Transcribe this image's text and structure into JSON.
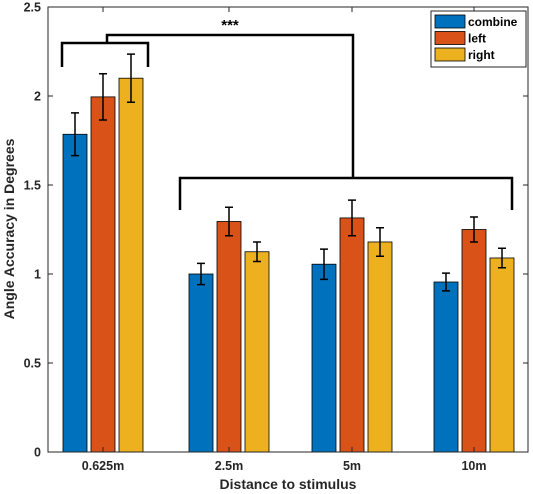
{
  "chart_data": {
    "type": "bar",
    "categories": [
      "0.625m",
      "2.5m",
      "5m",
      "10m"
    ],
    "series": [
      {
        "name": "combine",
        "color": "#0072BD",
        "values": [
          1.785,
          1.0,
          1.055,
          0.955
        ],
        "errors": [
          0.12,
          0.06,
          0.085,
          0.05
        ]
      },
      {
        "name": "left",
        "color": "#D95319",
        "values": [
          1.995,
          1.295,
          1.315,
          1.25
        ],
        "errors": [
          0.13,
          0.08,
          0.1,
          0.07
        ]
      },
      {
        "name": "right",
        "color": "#EDB120",
        "values": [
          2.1,
          1.125,
          1.18,
          1.09
        ],
        "errors": [
          0.135,
          0.055,
          0.08,
          0.055
        ]
      }
    ],
    "xlabel": "Distance to stimulus",
    "ylabel": "Angle Accuracy in Degrees",
    "ylim": [
      0,
      2.5
    ],
    "yticks": [
      "0",
      "0.5",
      "1",
      "1.5",
      "2",
      "2.5"
    ],
    "grid": false,
    "legend_position": "top-right",
    "annotations": [
      {
        "text": "***"
      }
    ]
  }
}
